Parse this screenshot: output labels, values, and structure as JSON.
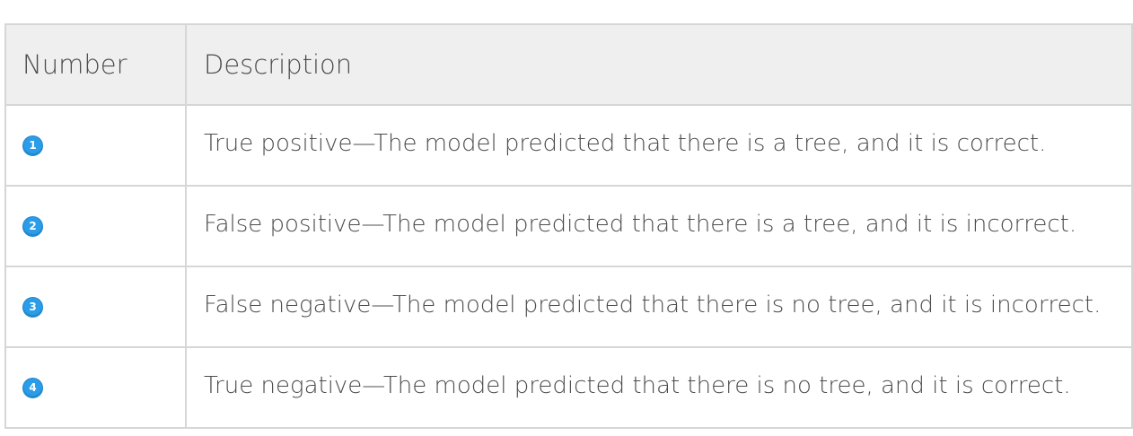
{
  "table": {
    "headers": {
      "number": "Number",
      "description": "Description"
    },
    "rows": [
      {
        "number": "1",
        "description": "True positive—The model predicted that there is a tree, and it is correct."
      },
      {
        "number": "2",
        "description": "False positive—The model predicted that there is a tree, and it is incorrect."
      },
      {
        "number": "3",
        "description": "False negative—The model predicted that there is no tree, and it is incorrect."
      },
      {
        "number": "4",
        "description": "True negative—The model predicted that there is no tree, and it is correct."
      }
    ]
  },
  "colors": {
    "header_bg": "#efefef",
    "border": "#d6d6d6",
    "text": "#4c4c4c",
    "badge": "#2b9de8"
  },
  "icons": {
    "row_marker": "numbered-circle-icon"
  }
}
